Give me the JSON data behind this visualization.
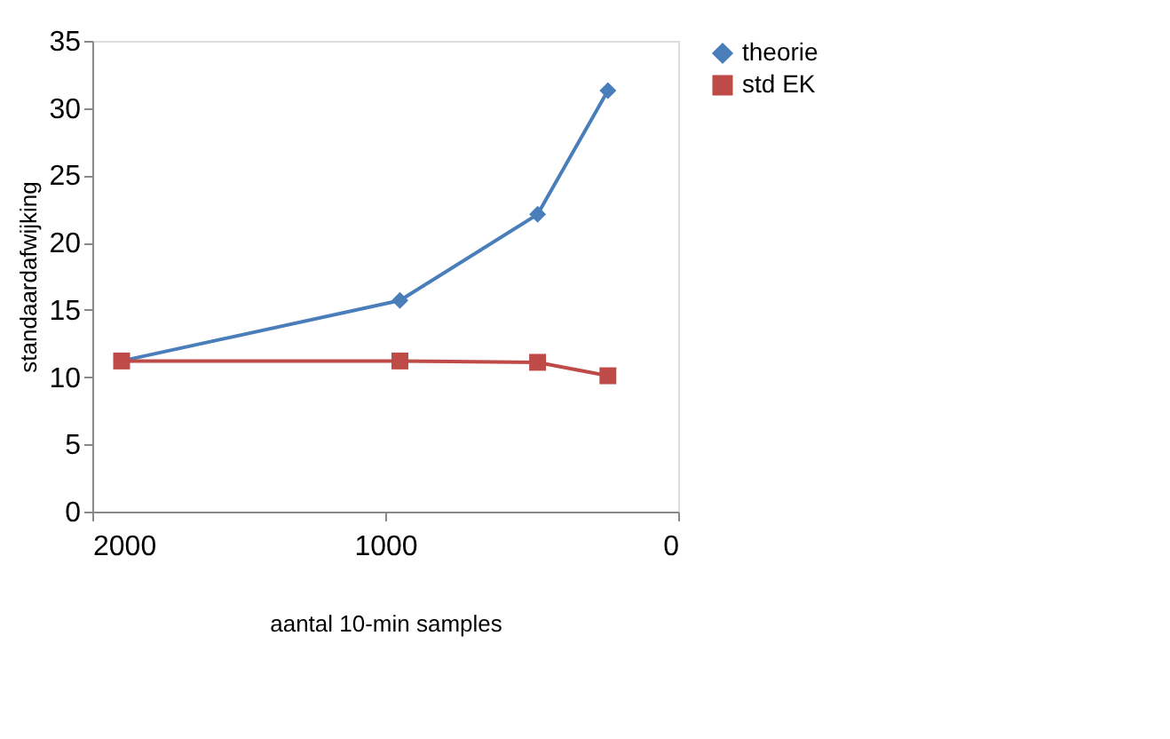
{
  "chart_data": {
    "type": "line",
    "xlabel": "aantal 10-min samples",
    "ylabel": "standaardafwijking",
    "xlim": [
      2000,
      0
    ],
    "xticks": [
      2000,
      1000,
      0
    ],
    "ylim": [
      0,
      35
    ],
    "yticks": [
      0,
      5,
      10,
      15,
      20,
      25,
      30,
      35
    ],
    "x": [
      1900,
      950,
      480,
      240
    ],
    "series": [
      {
        "name": "theorie",
        "color": "#4a7ebb",
        "marker": "diamond",
        "values": [
          11.2,
          15.7,
          22.1,
          31.3
        ]
      },
      {
        "name": "std EK",
        "color": "#be4b48",
        "marker": "square",
        "values": [
          11.2,
          11.2,
          11.1,
          10.1
        ]
      }
    ],
    "grid": false,
    "legend": "right"
  }
}
